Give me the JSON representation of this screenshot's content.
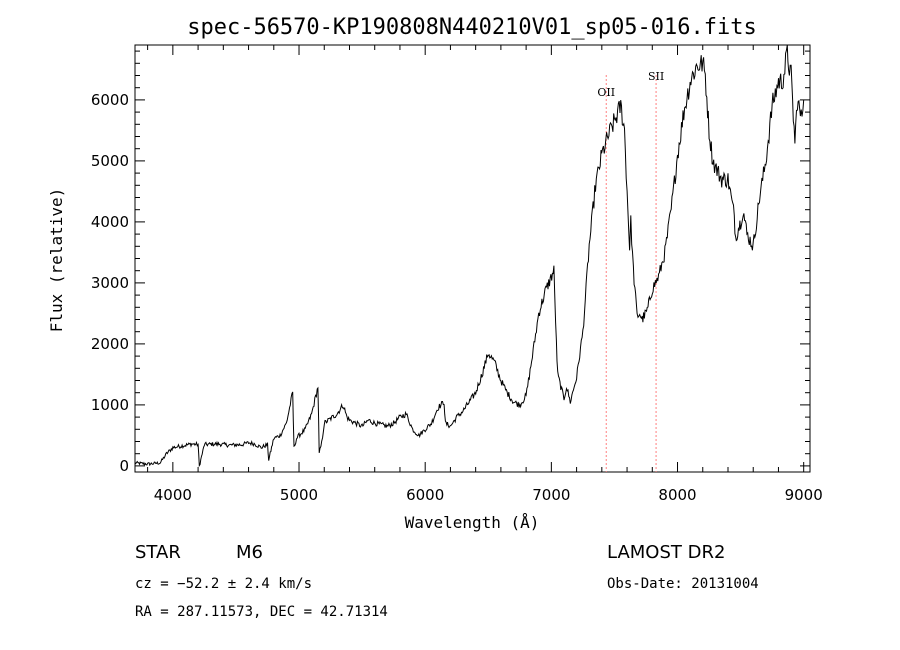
{
  "chart_data": {
    "type": "line",
    "title": "spec-56570-KP190808N440210V01_sp05-016.fits",
    "xlabel": "Wavelength (Å)",
    "ylabel": "Flux (relative)",
    "xlim": [
      3700,
      9050
    ],
    "ylim": [
      -100,
      6900
    ],
    "x_ticks": [
      4000,
      5000,
      6000,
      7000,
      8000,
      9000
    ],
    "y_ticks": [
      0,
      1000,
      2000,
      3000,
      4000,
      5000,
      6000
    ],
    "grid": false,
    "line_color": "#000000",
    "series": [
      {
        "x": [
          3700,
          3800,
          3900,
          3950,
          4000,
          4050,
          4150,
          4200,
          4210,
          4250,
          4350,
          4450,
          4550,
          4600,
          4650,
          4700,
          4750,
          4760,
          4800,
          4850,
          4900,
          4950,
          4960,
          4980,
          5000,
          5050,
          5100,
          5150,
          5160,
          5180,
          5200,
          5300,
          5350,
          5380,
          5400,
          5450,
          5500,
          5550,
          5600,
          5700,
          5750,
          5800,
          5850,
          5900,
          5950,
          6000,
          6050,
          6100,
          6150,
          6160,
          6200,
          6250,
          6300,
          6400,
          6450,
          6500,
          6550,
          6600,
          6650,
          6700,
          6750,
          6800,
          6850,
          6900,
          6950,
          7020,
          7040,
          7050,
          7100,
          7120,
          7150,
          7200,
          7250,
          7300,
          7350,
          7400,
          7450,
          7500,
          7550,
          7580,
          7600,
          7620,
          7630,
          7650,
          7680,
          7700,
          7720,
          7760,
          7800,
          7850,
          7900,
          7950,
          8000,
          8050,
          8100,
          8150,
          8200,
          8220,
          8250,
          8280,
          8300,
          8350,
          8400,
          8450,
          8460,
          8500,
          8520,
          8550,
          8600,
          8650,
          8700,
          8750,
          8800,
          8830,
          8850,
          8870,
          8880,
          8900,
          8930,
          8950,
          8980,
          9000
        ],
        "y": [
          50,
          30,
          50,
          200,
          300,
          320,
          360,
          350,
          0,
          350,
          360,
          340,
          350,
          380,
          360,
          300,
          350,
          100,
          450,
          500,
          700,
          1200,
          300,
          450,
          500,
          600,
          850,
          1300,
          200,
          380,
          700,
          850,
          1000,
          800,
          750,
          700,
          650,
          750,
          700,
          650,
          700,
          800,
          850,
          600,
          500,
          600,
          700,
          950,
          1050,
          700,
          650,
          800,
          900,
          1200,
          1500,
          1850,
          1700,
          1400,
          1200,
          1050,
          1000,
          1150,
          1800,
          2500,
          2850,
          3200,
          2000,
          1500,
          1100,
          1300,
          1050,
          1450,
          2200,
          3600,
          4600,
          5100,
          5400,
          5650,
          5900,
          5500,
          4500,
          3600,
          4000,
          3200,
          2450,
          2500,
          2400,
          2550,
          2900,
          3100,
          3500,
          4200,
          5100,
          5800,
          6300,
          6550,
          6600,
          6400,
          5500,
          5000,
          4900,
          4700,
          4700,
          4100,
          3750,
          4000,
          4200,
          3800,
          3600,
          4400,
          5000,
          5900,
          6300,
          6300,
          6500,
          6800,
          6600,
          6400,
          5300,
          6000,
          5700,
          6000
        ]
      }
    ],
    "annotations": [
      {
        "label": "OII",
        "x": 7435,
        "color": "#ff0000"
      },
      {
        "label": "SII",
        "x": 7830,
        "color": "#ff0000"
      }
    ]
  },
  "info": {
    "object_type": "STAR",
    "subclass": "M6",
    "survey": "LAMOST DR2",
    "redshift_line": "cz = −52.2 ± 2.4 km/s",
    "obs_date": "Obs-Date: 20131004",
    "coords": "RA = 287.11573, DEC =  42.71314"
  }
}
